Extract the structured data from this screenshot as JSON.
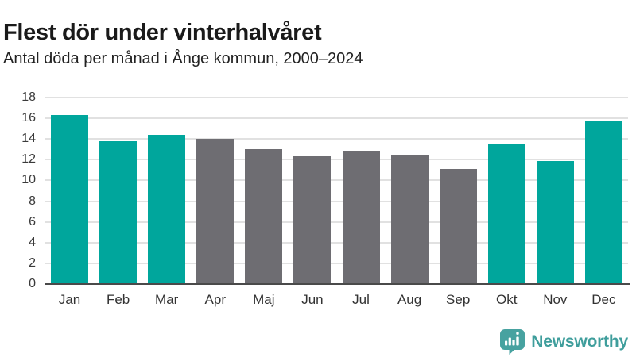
{
  "header": {
    "title": "Flest dör under vinterhalvåret",
    "subtitle": "Antal döda per månad i Ånge kommun, 2000–2024"
  },
  "chart_data": {
    "type": "bar",
    "title": "Flest dör under vinterhalvåret",
    "subtitle": "Antal döda per månad i Ånge kommun, 2000–2024",
    "categories": [
      "Jan",
      "Feb",
      "Mar",
      "Apr",
      "Maj",
      "Jun",
      "Jul",
      "Aug",
      "Sep",
      "Okt",
      "Nov",
      "Dec"
    ],
    "values": [
      16.3,
      13.8,
      14.4,
      14.0,
      13.0,
      12.3,
      12.9,
      12.5,
      11.1,
      13.5,
      11.9,
      15.8
    ],
    "bar_groups": [
      "winter",
      "winter",
      "winter",
      "summer",
      "summer",
      "summer",
      "summer",
      "summer",
      "summer",
      "winter",
      "winter",
      "winter"
    ],
    "palette": {
      "winter": "#00A69C",
      "summer": "#6E6D72"
    },
    "xlabel": "",
    "ylabel": "",
    "ylim": [
      0,
      18
    ],
    "ytick_step": 2,
    "grid": true,
    "legend": "none"
  },
  "footer": {
    "brand": "Newsworthy",
    "brand_color": "#3F9E9C",
    "logo_icon": "bar-chart-speech-bubble-icon"
  },
  "colors": {
    "teal_bar": "#00A69C",
    "gray_bar": "#6E6D72",
    "gridline": "#E1E1E1",
    "axis_line": "#4A4A4A",
    "background": "#FFFFFF"
  }
}
